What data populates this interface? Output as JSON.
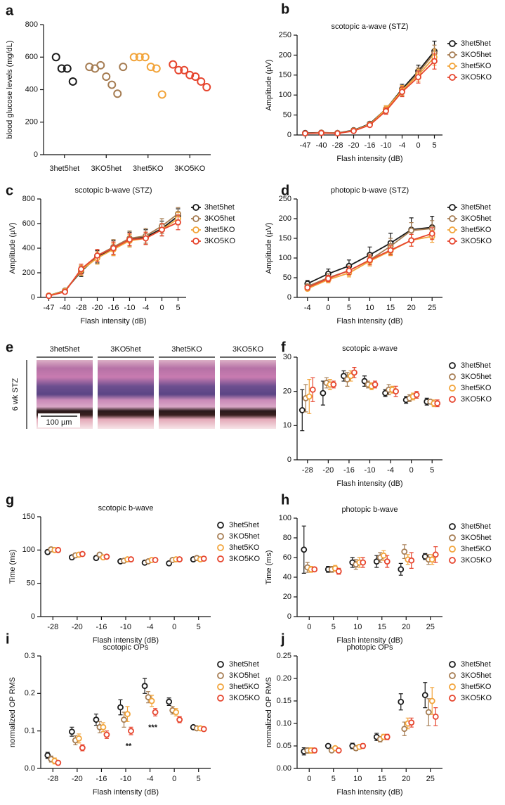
{
  "chart_data": [
    {
      "panel": "a",
      "type": "strip",
      "ylabel": "blood glucose levels (mg/dL)",
      "categories": [
        "3het5het",
        "3KO5het",
        "3het5KO",
        "3KO5KO"
      ],
      "colors": [
        "#1a1a1a",
        "#a57c52",
        "#f2a43a",
        "#e6452e"
      ],
      "values": [
        [
          600,
          530,
          530,
          450
        ],
        [
          540,
          530,
          550,
          480,
          430,
          375,
          540
        ],
        [
          600,
          600,
          600,
          540,
          530,
          370
        ],
        [
          555,
          520,
          520,
          490,
          480,
          450,
          415
        ]
      ],
      "ylim": [
        0,
        800
      ],
      "yticks": [
        0,
        200,
        400,
        600,
        800
      ]
    },
    {
      "panel": "b",
      "type": "line",
      "title": "scotopic a-wave (STZ)",
      "xlabel": "Flash intensity (dB)",
      "ylabel": "Amplitude (µV)",
      "categories": [
        "-47",
        "-40",
        "-28",
        "-20",
        "-16",
        "-10",
        "-4",
        "0",
        "5"
      ],
      "ylim": [
        0,
        250
      ],
      "yticks": [
        0,
        50,
        100,
        150,
        200,
        250
      ],
      "legend": "right",
      "series": [
        {
          "name": "3het5het",
          "color": "#1a1a1a",
          "values": [
            5,
            6,
            5,
            12,
            28,
            65,
            115,
            160,
            210
          ],
          "errors": [
            2,
            2,
            2,
            3,
            5,
            8,
            12,
            15,
            25
          ]
        },
        {
          "name": "3KO5het",
          "color": "#a57c52",
          "values": [
            4,
            6,
            5,
            11,
            27,
            62,
            110,
            155,
            205
          ],
          "errors": [
            2,
            2,
            2,
            3,
            5,
            8,
            12,
            15,
            20
          ]
        },
        {
          "name": "3het5KO",
          "color": "#f2a43a",
          "values": [
            4,
            5,
            4,
            11,
            26,
            65,
            112,
            150,
            195
          ],
          "errors": [
            2,
            2,
            2,
            3,
            5,
            8,
            12,
            15,
            20
          ]
        },
        {
          "name": "3KO5KO",
          "color": "#e6452e",
          "values": [
            4,
            5,
            4,
            10,
            25,
            60,
            108,
            145,
            185
          ],
          "errors": [
            2,
            2,
            2,
            3,
            5,
            8,
            12,
            15,
            20
          ]
        }
      ]
    },
    {
      "panel": "c",
      "type": "line",
      "title": "scotopic b-wave (STZ)",
      "xlabel": "Flash intensity (dB)",
      "ylabel": "Amplitude (µV)",
      "categories": [
        "-47",
        "-40",
        "-28",
        "-20",
        "-16",
        "-10",
        "-4",
        "0",
        "5"
      ],
      "ylim": [
        0,
        800
      ],
      "yticks": [
        0,
        200,
        400,
        600,
        800
      ],
      "legend": "right",
      "series": [
        {
          "name": "3het5het",
          "color": "#1a1a1a",
          "values": [
            15,
            55,
            210,
            330,
            400,
            470,
            490,
            560,
            660
          ],
          "errors": [
            5,
            10,
            40,
            50,
            60,
            60,
            60,
            60,
            60
          ]
        },
        {
          "name": "3KO5het",
          "color": "#a57c52",
          "values": [
            15,
            55,
            220,
            340,
            410,
            480,
            500,
            580,
            680
          ],
          "errors": [
            5,
            10,
            40,
            50,
            60,
            60,
            60,
            60,
            50
          ]
        },
        {
          "name": "3het5KO",
          "color": "#f2a43a",
          "values": [
            15,
            50,
            220,
            320,
            390,
            460,
            480,
            550,
            640
          ],
          "errors": [
            5,
            10,
            40,
            50,
            50,
            50,
            50,
            50,
            50
          ]
        },
        {
          "name": "3KO5KO",
          "color": "#e6452e",
          "values": [
            12,
            45,
            230,
            340,
            400,
            470,
            480,
            550,
            610
          ],
          "errors": [
            5,
            10,
            40,
            50,
            50,
            50,
            50,
            50,
            60
          ]
        }
      ]
    },
    {
      "panel": "d",
      "type": "line",
      "title": "photopic b-wave (STZ)",
      "xlabel": "Flash intensity (dB)",
      "ylabel": "Amplitude (µV)",
      "categories": [
        "-4",
        "0",
        "5",
        "10",
        "15",
        "20",
        "25"
      ],
      "ylim": [
        0,
        250
      ],
      "yticks": [
        0,
        50,
        100,
        150,
        200,
        250
      ],
      "legend": "right",
      "series": [
        {
          "name": "3het5het",
          "color": "#1a1a1a",
          "values": [
            35,
            60,
            80,
            108,
            138,
            172,
            178
          ],
          "errors": [
            8,
            12,
            15,
            20,
            25,
            30,
            28
          ]
        },
        {
          "name": "3KO5het",
          "color": "#a57c52",
          "values": [
            28,
            50,
            68,
            95,
            130,
            170,
            175
          ],
          "errors": [
            6,
            10,
            12,
            15,
            20,
            20,
            20
          ]
        },
        {
          "name": "3het5KO",
          "color": "#f2a43a",
          "values": [
            22,
            45,
            62,
            92,
            118,
            145,
            155
          ],
          "errors": [
            5,
            8,
            10,
            12,
            12,
            15,
            15
          ]
        },
        {
          "name": "3KO5KO",
          "color": "#e6452e",
          "values": [
            25,
            48,
            68,
            95,
            120,
            145,
            162
          ],
          "errors": [
            5,
            8,
            10,
            12,
            12,
            15,
            15
          ]
        }
      ]
    },
    {
      "panel": "f",
      "type": "dot",
      "title": "scotopic a-wave",
      "xlabel": "Flash intensity (dB)",
      "ylabel": "Time (ms)",
      "categories": [
        "-28",
        "-20",
        "-16",
        "-10",
        "-4",
        "0",
        "5"
      ],
      "ylim": [
        0,
        30
      ],
      "yticks": [
        0,
        10,
        20,
        30
      ],
      "legend": "right",
      "series": [
        {
          "name": "3het5het",
          "color": "#1a1a1a",
          "values": [
            14.5,
            19.5,
            24.5,
            23,
            19.5,
            17.5,
            17
          ],
          "errors": [
            6,
            3.5,
            1.5,
            1.5,
            1,
            1,
            1
          ]
        },
        {
          "name": "3KO5het",
          "color": "#a57c52",
          "values": [
            18,
            22.5,
            23.5,
            22,
            20.5,
            18,
            17
          ],
          "errors": [
            4,
            1.5,
            2,
            1,
            1.5,
            1,
            0.5
          ]
        },
        {
          "name": "3het5KO",
          "color": "#f2a43a",
          "values": [
            18.5,
            22,
            24.5,
            21.5,
            20.5,
            18.5,
            16.5
          ],
          "errors": [
            5,
            1.5,
            1.5,
            1,
            1,
            1,
            1
          ]
        },
        {
          "name": "3KO5KO",
          "color": "#e6452e",
          "values": [
            20.5,
            22,
            25.5,
            22,
            20,
            19,
            16.5
          ],
          "errors": [
            3.5,
            1,
            1.5,
            1,
            1.5,
            1,
            1
          ]
        }
      ]
    },
    {
      "panel": "g",
      "type": "dot",
      "title": "scotopic b-wave",
      "xlabel": "Flash intensity (dB)",
      "ylabel": "Time (ms)",
      "categories": [
        "-28",
        "-20",
        "-16",
        "-10",
        "-4",
        "0",
        "5"
      ],
      "ylim": [
        0,
        150
      ],
      "yticks": [
        0,
        50,
        100,
        150
      ],
      "legend": "right",
      "series": [
        {
          "name": "3het5het",
          "color": "#1a1a1a",
          "values": [
            97,
            89,
            88,
            83,
            81,
            80,
            86
          ],
          "errors": [
            3,
            3,
            3,
            2,
            3,
            2,
            3
          ]
        },
        {
          "name": "3KO5het",
          "color": "#a57c52",
          "values": [
            101,
            92,
            93,
            84,
            83,
            85,
            88
          ],
          "errors": [
            3,
            3,
            3,
            2,
            3,
            2,
            3
          ]
        },
        {
          "name": "3het5KO",
          "color": "#f2a43a",
          "values": [
            100,
            93,
            89,
            86,
            85,
            86,
            86
          ],
          "errors": [
            3,
            3,
            3,
            2,
            3,
            2,
            3
          ]
        },
        {
          "name": "3KO5KO",
          "color": "#e6452e",
          "values": [
            100,
            94,
            90,
            86,
            85,
            86,
            87
          ],
          "errors": [
            3,
            3,
            3,
            2,
            3,
            2,
            3
          ]
        }
      ]
    },
    {
      "panel": "h",
      "type": "dot",
      "title": "photopic b-wave",
      "xlabel": "Flash intensity (dB)",
      "ylabel": "Time (ms)",
      "categories": [
        "0",
        "5",
        "10",
        "15",
        "20",
        "25"
      ],
      "ylim": [
        0,
        100
      ],
      "yticks": [
        0,
        20,
        40,
        60,
        80,
        100
      ],
      "legend": "right",
      "series": [
        {
          "name": "3het5het",
          "color": "#1a1a1a",
          "values": [
            68,
            48,
            55,
            56,
            48,
            61
          ],
          "errors": [
            24,
            3,
            5,
            6,
            6,
            3
          ]
        },
        {
          "name": "3KO5het",
          "color": "#a57c52",
          "values": [
            50,
            48,
            53,
            60,
            66,
            58
          ],
          "errors": [
            5,
            3,
            5,
            5,
            7,
            5
          ]
        },
        {
          "name": "3het5KO",
          "color": "#f2a43a",
          "values": [
            48,
            49,
            55,
            62,
            58,
            58
          ],
          "errors": [
            3,
            3,
            5,
            5,
            5,
            5
          ]
        },
        {
          "name": "3KO5KO",
          "color": "#e6452e",
          "values": [
            48,
            46,
            55,
            56,
            57,
            63
          ],
          "errors": [
            2,
            3,
            5,
            6,
            8,
            8
          ]
        }
      ]
    },
    {
      "panel": "i",
      "type": "dot",
      "title": "scotopic OPs",
      "xlabel": "Flash intensity (dB)",
      "ylabel": "normalized OP RMS",
      "categories": [
        "-28",
        "-20",
        "-16",
        "-10",
        "-4",
        "0",
        "5"
      ],
      "ylim": [
        0,
        0.3
      ],
      "yticks": [
        {
          "value": 0,
          "label": "0.0"
        },
        {
          "value": 0.1,
          "label": "0.1"
        },
        {
          "value": 0.2,
          "label": "0.2"
        },
        {
          "value": 0.3,
          "label": "0.3"
        }
      ],
      "legend": "right",
      "annotations": [
        {
          "text": "**",
          "x": "-10",
          "color": "#e6452e"
        },
        {
          "text": "***",
          "x": "-4",
          "color": "#e6452e"
        }
      ],
      "series": [
        {
          "name": "3het5het",
          "color": "#1a1a1a",
          "values": [
            0.035,
            0.098,
            0.13,
            0.163,
            0.22,
            0.178,
            0.11
          ],
          "errors": [
            0.008,
            0.012,
            0.015,
            0.02,
            0.02,
            0.01,
            0.005
          ]
        },
        {
          "name": "3KO5het",
          "color": "#a57c52",
          "values": [
            0.025,
            0.075,
            0.11,
            0.13,
            0.19,
            0.155,
            0.107
          ],
          "errors": [
            0.008,
            0.012,
            0.015,
            0.02,
            0.015,
            0.01,
            0.005
          ]
        },
        {
          "name": "3het5KO",
          "color": "#f2a43a",
          "values": [
            0.02,
            0.08,
            0.11,
            0.145,
            0.18,
            0.15,
            0.107
          ],
          "errors": [
            0.008,
            0.012,
            0.012,
            0.02,
            0.015,
            0.01,
            0.005
          ]
        },
        {
          "name": "3KO5KO",
          "color": "#e6452e",
          "values": [
            0.015,
            0.055,
            0.09,
            0.1,
            0.15,
            0.13,
            0.105
          ],
          "errors": [
            0.005,
            0.008,
            0.01,
            0.01,
            0.01,
            0.008,
            0.005
          ]
        }
      ]
    },
    {
      "panel": "j",
      "type": "dot",
      "title": "photopic OPs",
      "xlabel": "Flash intensity (dB)",
      "ylabel": "normalized OP RMS",
      "categories": [
        "0",
        "5",
        "10",
        "15",
        "20",
        "25"
      ],
      "ylim": [
        0,
        0.25
      ],
      "yticks": [
        {
          "value": 0,
          "label": "0.00"
        },
        {
          "value": 0.05,
          "label": "0.05"
        },
        {
          "value": 0.1,
          "label": "0.10"
        },
        {
          "value": 0.15,
          "label": "0.15"
        },
        {
          "value": 0.2,
          "label": "0.20"
        },
        {
          "value": 0.25,
          "label": "0.25"
        }
      ],
      "legend": "right",
      "series": [
        {
          "name": "3het5het",
          "color": "#1a1a1a",
          "values": [
            0.038,
            0.05,
            0.05,
            0.07,
            0.148,
            0.163
          ],
          "errors": [
            0.008,
            0.004,
            0.006,
            0.008,
            0.018,
            0.028
          ]
        },
        {
          "name": "3KO5het",
          "color": "#a57c52",
          "values": [
            0.04,
            0.04,
            0.045,
            0.065,
            0.088,
            0.125
          ],
          "errors": [
            0.006,
            0.004,
            0.005,
            0.006,
            0.015,
            0.03
          ]
        },
        {
          "name": "3het5KO",
          "color": "#f2a43a",
          "values": [
            0.04,
            0.045,
            0.048,
            0.07,
            0.1,
            0.15
          ],
          "errors": [
            0.006,
            0.004,
            0.005,
            0.006,
            0.012,
            0.03
          ]
        },
        {
          "name": "3KO5KO",
          "color": "#e6452e",
          "values": [
            0.04,
            0.04,
            0.05,
            0.07,
            0.102,
            0.115
          ],
          "errors": [
            0.005,
            0.004,
            0.005,
            0.006,
            0.01,
            0.02
          ]
        }
      ]
    }
  ],
  "histology": {
    "panel": "e",
    "columns": [
      "3het5het",
      "3KO5het",
      "3het5KO",
      "3KO5KO"
    ],
    "side_label": "6 wk STZ",
    "scale_bar": "100 µm"
  }
}
